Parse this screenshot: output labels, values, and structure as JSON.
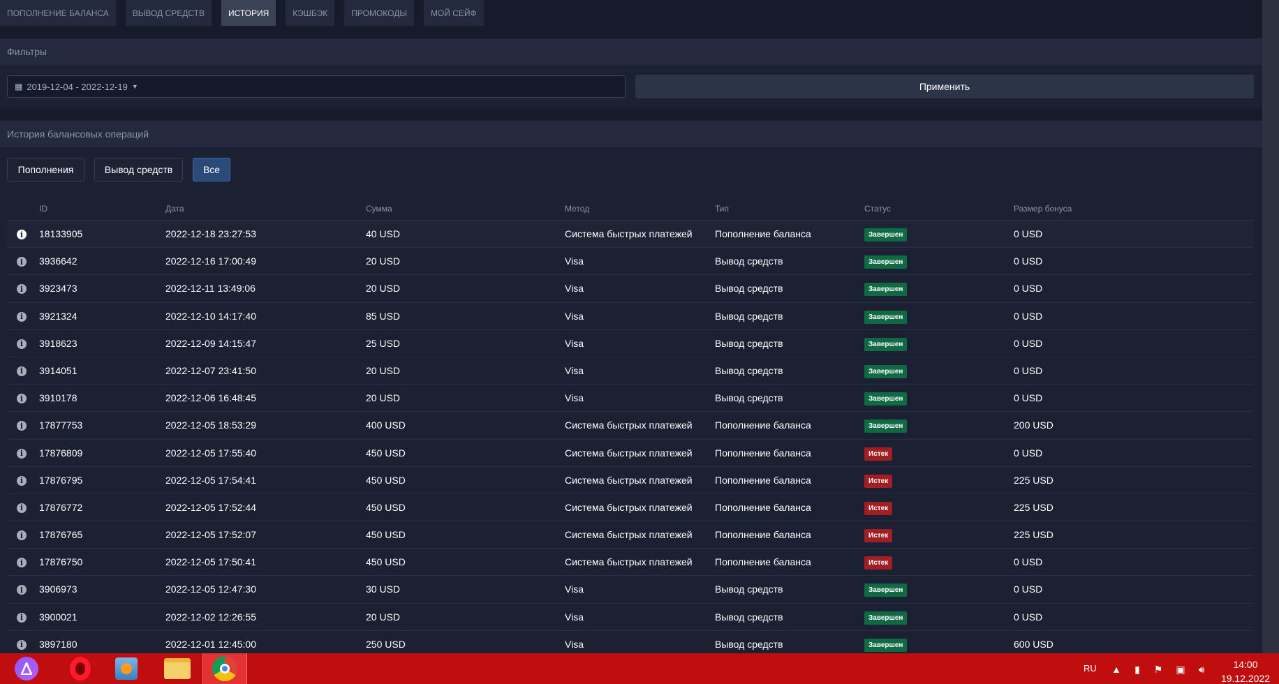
{
  "tabs": [
    "ПОПОЛНЕНИЕ БАЛАНСА",
    "ВЫВОД СРЕДСТВ",
    "ИСТОРИЯ",
    "КЭШБЭК",
    "ПРОМОКОДЫ",
    "МОЙ СЕЙФ"
  ],
  "active_tab": "ИСТОРИЯ",
  "filters": {
    "title": "Фильтры",
    "date_range": "2019-12-04 - 2022-12-19",
    "apply_label": "Применить"
  },
  "history": {
    "title": "История балансовых операций",
    "buttons": [
      "Пополнения",
      "Вывод средств",
      "Все"
    ],
    "active_button": "Все",
    "columns": [
      "ID",
      "Дата",
      "Сумма",
      "Метод",
      "Тип",
      "Статус",
      "Размер бонуса"
    ],
    "rows": [
      {
        "id": "18133905",
        "date": "2022-12-18 23:27:53",
        "amount": "40 USD",
        "method": "Система быстрых платежей",
        "type": "Пополнение баланса",
        "status": "Завершен",
        "bonus": "0 USD"
      },
      {
        "id": "3936642",
        "date": "2022-12-16 17:00:49",
        "amount": "20 USD",
        "method": "Visa",
        "type": "Вывод средств",
        "status": "Завершен",
        "bonus": "0 USD"
      },
      {
        "id": "3923473",
        "date": "2022-12-11 13:49:06",
        "amount": "20 USD",
        "method": "Visa",
        "type": "Вывод средств",
        "status": "Завершен",
        "bonus": "0 USD"
      },
      {
        "id": "3921324",
        "date": "2022-12-10 14:17:40",
        "amount": "85 USD",
        "method": "Visa",
        "type": "Вывод средств",
        "status": "Завершен",
        "bonus": "0 USD"
      },
      {
        "id": "3918623",
        "date": "2022-12-09 14:15:47",
        "amount": "25 USD",
        "method": "Visa",
        "type": "Вывод средств",
        "status": "Завершен",
        "bonus": "0 USD"
      },
      {
        "id": "3914051",
        "date": "2022-12-07 23:41:50",
        "amount": "20 USD",
        "method": "Visa",
        "type": "Вывод средств",
        "status": "Завершен",
        "bonus": "0 USD"
      },
      {
        "id": "3910178",
        "date": "2022-12-06 16:48:45",
        "amount": "20 USD",
        "method": "Visa",
        "type": "Вывод средств",
        "status": "Завершен",
        "bonus": "0 USD"
      },
      {
        "id": "17877753",
        "date": "2022-12-05 18:53:29",
        "amount": "400 USD",
        "method": "Система быстрых платежей",
        "type": "Пополнение баланса",
        "status": "Завершен",
        "bonus": "200 USD"
      },
      {
        "id": "17876809",
        "date": "2022-12-05 17:55:40",
        "amount": "450 USD",
        "method": "Система быстрых платежей",
        "type": "Пополнение баланса",
        "status": "Истек",
        "bonus": "0 USD"
      },
      {
        "id": "17876795",
        "date": "2022-12-05 17:54:41",
        "amount": "450 USD",
        "method": "Система быстрых платежей",
        "type": "Пополнение баланса",
        "status": "Истек",
        "bonus": "225 USD"
      },
      {
        "id": "17876772",
        "date": "2022-12-05 17:52:44",
        "amount": "450 USD",
        "method": "Система быстрых платежей",
        "type": "Пополнение баланса",
        "status": "Истек",
        "bonus": "225 USD"
      },
      {
        "id": "17876765",
        "date": "2022-12-05 17:52:07",
        "amount": "450 USD",
        "method": "Система быстрых платежей",
        "type": "Пополнение баланса",
        "status": "Истек",
        "bonus": "225 USD"
      },
      {
        "id": "17876750",
        "date": "2022-12-05 17:50:41",
        "amount": "450 USD",
        "method": "Система быстрых платежей",
        "type": "Пополнение баланса",
        "status": "Истек",
        "bonus": "0 USD"
      },
      {
        "id": "3906973",
        "date": "2022-12-05 12:47:30",
        "amount": "30 USD",
        "method": "Visa",
        "type": "Вывод средств",
        "status": "Завершен",
        "bonus": "0 USD"
      },
      {
        "id": "3900021",
        "date": "2022-12-02 12:26:55",
        "amount": "20 USD",
        "method": "Visa",
        "type": "Вывод средств",
        "status": "Завершен",
        "bonus": "0 USD"
      },
      {
        "id": "3897180",
        "date": "2022-12-01 12:45:00",
        "amount": "250 USD",
        "method": "Visa",
        "type": "Вывод средств",
        "status": "Завершен",
        "bonus": "600 USD"
      }
    ]
  },
  "status_colors": {
    "Завершен": "#0f6a43",
    "Истек": "#a11f24"
  },
  "taskbar": {
    "apps": [
      "alice-assistant-icon",
      "opera-icon",
      "media-player-icon",
      "file-explorer-icon",
      "chrome-icon"
    ],
    "language": "RU",
    "time": "14:00",
    "date": "19.12.2022"
  }
}
